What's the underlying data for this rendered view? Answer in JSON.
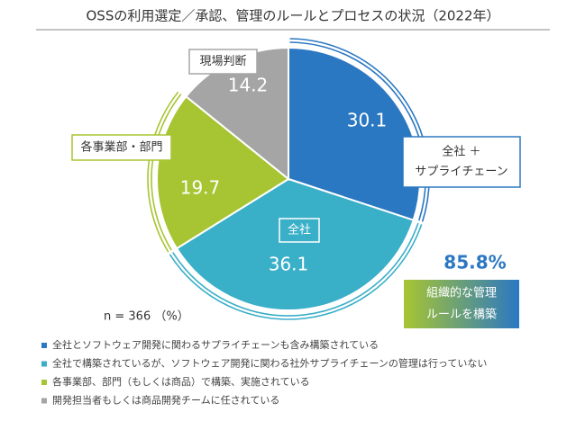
{
  "chart_data": {
    "type": "pie",
    "title": "OSSの利用選定／承認、管理のルールとプロセスの状況（2022年）",
    "categories": [
      [
        "全社 ＋",
        "サプライチェーン"
      ],
      [
        "全社"
      ],
      [
        "各事業部・部門"
      ],
      [
        "現場判断"
      ]
    ],
    "values": [
      30.1,
      36.1,
      19.7,
      14.2
    ],
    "colors": [
      "#2b78c2",
      "#3aafc8",
      "#a7c532",
      "#a5a5a5"
    ],
    "note": "n = 366 （%）",
    "callout": {
      "value_text": "85.8%",
      "lines": [
        "組織的な管理",
        "ルールを構築"
      ]
    },
    "legend": [
      "全社とソフトウェア開発に関わるサプライチェーンも含み構築されている",
      "全社で構築されているが、ソフトウェア開発に関わる社外サプライチェーンの管理は行っていない",
      "各事業部、部門（もしくは商品）で構築、実施されている",
      "開発担当者もしくは商品開発チームに任されている"
    ]
  }
}
